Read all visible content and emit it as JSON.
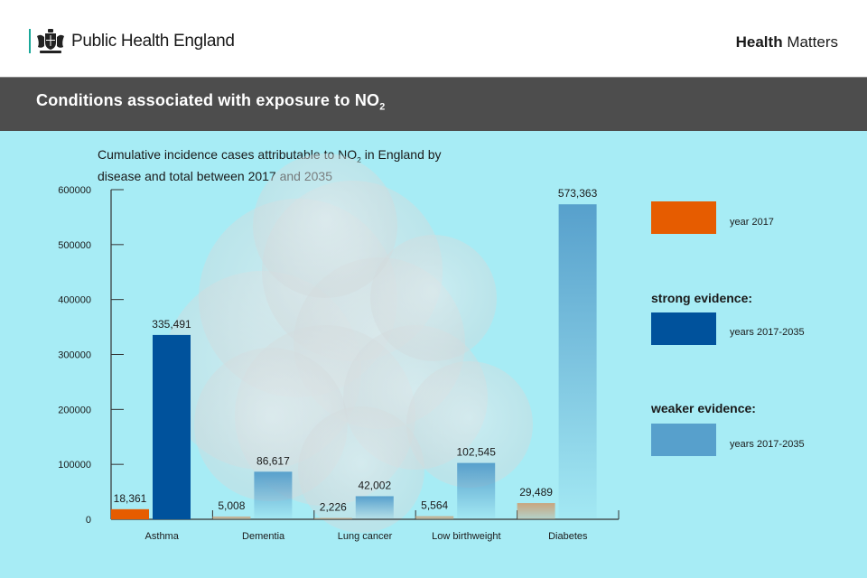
{
  "header": {
    "org_name": "Public Health England",
    "logo_icon": "royal-crest-icon",
    "series_bold": "Health",
    "series_rest": " Matters"
  },
  "titlebar": {
    "title_main": "Conditions associated with exposure to NO",
    "title_sub": "2"
  },
  "colors": {
    "year_2017": "#e65c00",
    "strong_evidence": "#00529c",
    "weaker_evidence": "#57a0cc",
    "background": "#a7ecf5",
    "title_bar": "#4d4d4d",
    "faded_2017": "#c9a57e"
  },
  "legend": {
    "items": [
      {
        "heading": "",
        "label": "year 2017",
        "color": "#e65c00"
      },
      {
        "heading": "strong evidence:",
        "label": "years 2017-2035",
        "color": "#00529c"
      },
      {
        "heading": "weaker evidence:",
        "label": "years 2017-2035",
        "color": "#57a0cc"
      }
    ]
  },
  "chart_data": {
    "type": "bar",
    "title": "Cumulative incidence cases attributable to NO2 in England by disease and total between 2017 and 2035",
    "title_parts": {
      "before": "Cumulative incidence cases attributable to NO",
      "sub": "2",
      "after": " in England by disease and total between 2017 and 2035"
    },
    "xlabel": "",
    "ylabel": "",
    "ylim": [
      0,
      600000
    ],
    "yticks": [
      "0",
      "100000",
      "200000",
      "300000",
      "400000",
      "500000",
      "600000"
    ],
    "ytick_values": [
      0,
      100000,
      200000,
      300000,
      400000,
      500000,
      600000
    ],
    "categories": [
      "Asthma",
      "Dementia",
      "Lung cancer",
      "Low birthweight",
      "Diabetes"
    ],
    "series": [
      {
        "name": "year 2017",
        "values": [
          18361,
          5008,
          2226,
          5564,
          29489
        ],
        "labels": [
          "18,361",
          "5,008",
          "2,226",
          "5,564",
          "29,489"
        ]
      },
      {
        "name": "years 2017-2035",
        "evidence": [
          "strong",
          "weaker",
          "weaker",
          "weaker",
          "weaker"
        ],
        "values": [
          335491,
          86617,
          42002,
          102545,
          573363
        ],
        "labels": [
          "335,491",
          "86,617",
          "42,002",
          "102,545",
          "573,363"
        ]
      }
    ],
    "legend_position": "right",
    "grid": false
  }
}
